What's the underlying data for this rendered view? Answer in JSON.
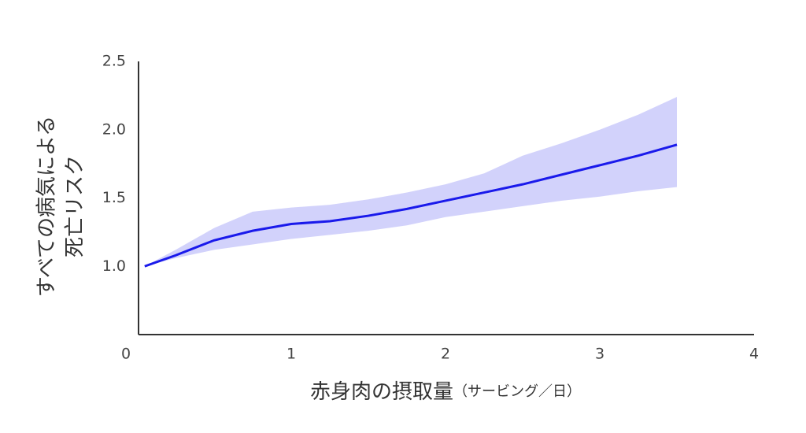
{
  "chart_data": {
    "type": "line_band",
    "ylabel": [
      "すべての病気による",
      "死亡リスク"
    ],
    "xlabel": "赤身肉の摂取量",
    "xlabel_note": "（サービング／日）",
    "x": [
      0.05,
      0.25,
      0.5,
      0.75,
      1,
      1.25,
      1.5,
      1.75,
      2,
      2.25,
      2.5,
      2.75,
      3,
      3.25,
      3.5
    ],
    "series": [
      {
        "color": "#1a1aeb",
        "band_color": "#d2d2fb",
        "values": [
          1.0,
          1.08,
          1.19,
          1.26,
          1.31,
          1.33,
          1.37,
          1.42,
          1.48,
          1.54,
          1.6,
          1.67,
          1.74,
          1.81,
          1.89
        ],
        "upper": [
          1.0,
          1.12,
          1.28,
          1.4,
          1.43,
          1.45,
          1.49,
          1.54,
          1.6,
          1.68,
          1.81,
          1.9,
          2.0,
          2.11,
          2.24
        ],
        "lower": [
          1.0,
          1.06,
          1.12,
          1.16,
          1.2,
          1.23,
          1.26,
          1.3,
          1.36,
          1.4,
          1.44,
          1.48,
          1.51,
          1.55,
          1.58
        ]
      }
    ],
    "xlim": [
      0,
      4
    ],
    "xticks": [
      0,
      1,
      2,
      3,
      4
    ],
    "ylim": [
      0.5,
      2.5
    ],
    "yticks": [
      {
        "value": 1,
        "label": "1.0"
      },
      {
        "value": 1.5,
        "label": "1.5"
      },
      {
        "value": 2,
        "label": "2.0"
      },
      {
        "value": 2.5,
        "label": "2.5"
      }
    ]
  }
}
